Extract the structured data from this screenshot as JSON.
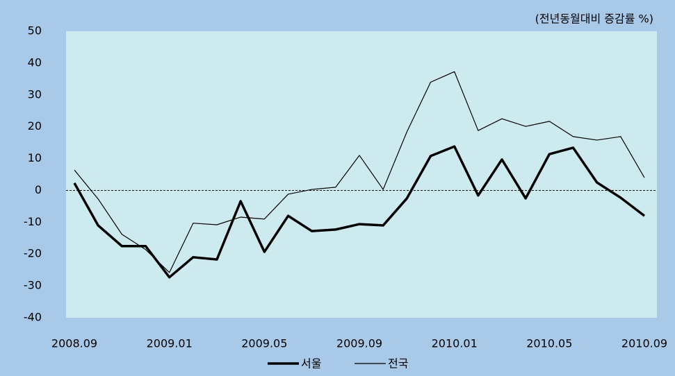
{
  "chart_data": {
    "type": "line",
    "annotation": "(전년동월대비 증감률 %)",
    "categories": [
      "2008.09",
      null,
      null,
      null,
      "2009.01",
      null,
      null,
      null,
      "2009.05",
      null,
      null,
      null,
      "2009.09",
      null,
      null,
      null,
      "2010.01",
      null,
      null,
      null,
      "2010.05",
      null,
      null,
      null,
      "2010.09"
    ],
    "series": [
      {
        "name": "서울",
        "color": "#000000",
        "width": 3.5,
        "values": [
          2.3,
          -11,
          -17.5,
          -17.5,
          -27.3,
          -21,
          -21.7,
          -3.4,
          -19.3,
          -8,
          -12.8,
          -12.3,
          -10.6,
          -11,
          -2.5,
          10.8,
          13.8,
          -1.6,
          9.7,
          -2.5,
          11.4,
          13.4,
          2.5,
          -2.3,
          -8
        ]
      },
      {
        "name": "전국",
        "color": "#000000",
        "width": 1.2,
        "values": [
          6.4,
          -2.7,
          -13.8,
          -18.6,
          -25.8,
          -10.3,
          -10.8,
          -8.4,
          -9,
          -1.2,
          0.3,
          1,
          11,
          0.3,
          18.4,
          34,
          37.3,
          18.8,
          22.5,
          20.1,
          21.7,
          16.9,
          15.8,
          16.9,
          4
        ]
      }
    ],
    "ylim": [
      -40,
      50
    ],
    "yticks": [
      -40,
      -30,
      -20,
      -10,
      0,
      10,
      20,
      30,
      40,
      50
    ],
    "zero_line": true
  }
}
